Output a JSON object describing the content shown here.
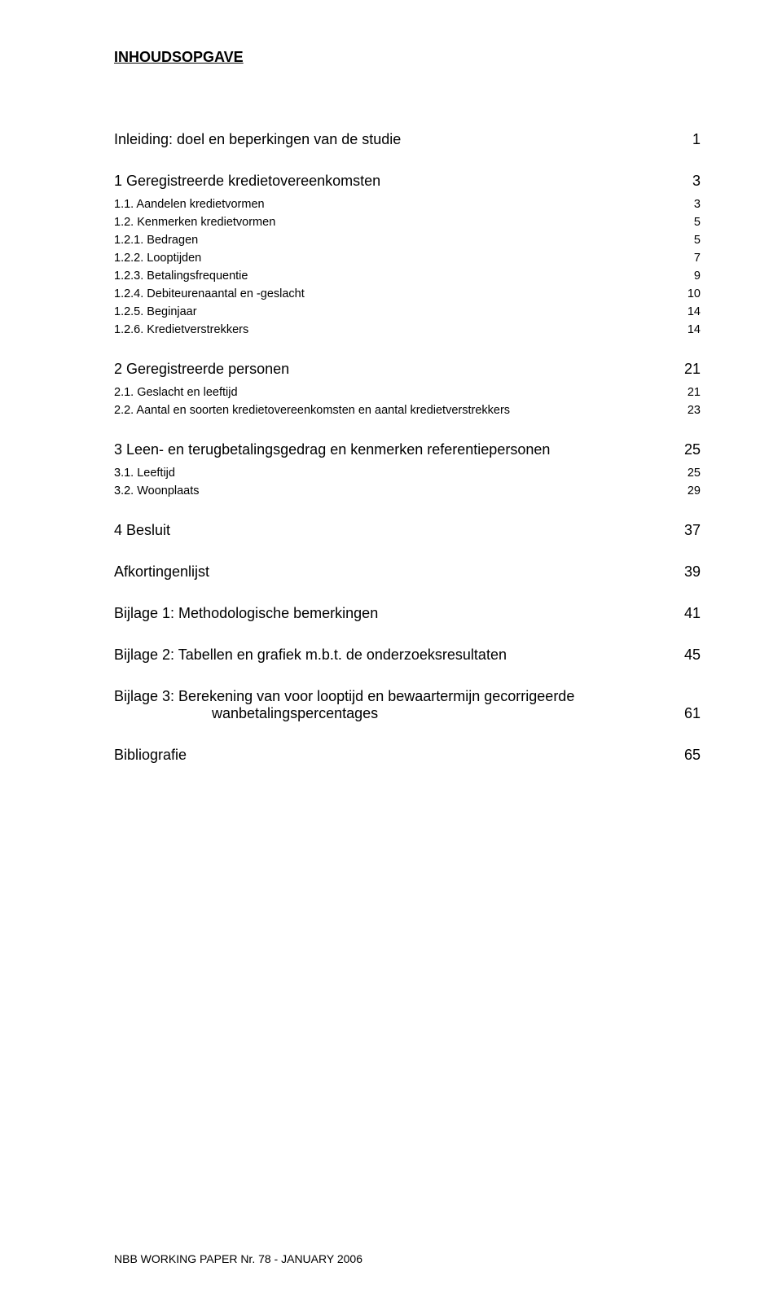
{
  "title": "INHOUDSOPGAVE",
  "entries": [
    {
      "label": "Inleiding: doel en beperkingen van de studie",
      "page": "1",
      "level": 0,
      "section": true
    },
    {
      "label": "1 Geregistreerde kredietovereenkomsten",
      "page": "3",
      "level": 0,
      "section": true
    },
    {
      "label": "1.1. Aandelen kredietvormen",
      "page": "3",
      "level": 1
    },
    {
      "label": "1.2. Kenmerken kredietvormen",
      "page": "5",
      "level": 1
    },
    {
      "label": "1.2.1. Bedragen",
      "page": "5",
      "level": 1
    },
    {
      "label": "1.2.2. Looptijden",
      "page": "7",
      "level": 1
    },
    {
      "label": "1.2.3. Betalingsfrequentie",
      "page": "9",
      "level": 1
    },
    {
      "label": "1.2.4. Debiteurenaantal en -geslacht",
      "page": "10",
      "level": 1
    },
    {
      "label": "1.2.5. Beginjaar",
      "page": "14",
      "level": 1
    },
    {
      "label": "1.2.6. Kredietverstrekkers",
      "page": "14",
      "level": 1
    },
    {
      "label": "2 Geregistreerde personen",
      "page": "21",
      "level": 0,
      "section": true
    },
    {
      "label": "2.1. Geslacht en leeftijd",
      "page": "21",
      "level": 1
    },
    {
      "label": "2.2. Aantal en soorten kredietovereenkomsten en aantal kredietverstrekkers",
      "page": "23",
      "level": 1
    },
    {
      "label": "3 Leen- en terugbetalingsgedrag en kenmerken referentiepersonen",
      "page": "25",
      "level": 0,
      "section": true
    },
    {
      "label": "3.1. Leeftijd",
      "page": "25",
      "level": 1
    },
    {
      "label": "3.2. Woonplaats",
      "page": "29",
      "level": 1
    },
    {
      "label": "4 Besluit",
      "page": "37",
      "level": 0,
      "section": true
    },
    {
      "label": "Afkortingenlijst",
      "page": "39",
      "level": 0,
      "section": true
    },
    {
      "label": "Bijlage 1: Methodologische bemerkingen",
      "page": "41",
      "level": 0,
      "section": true
    },
    {
      "label": "Bijlage 2: Tabellen en grafiek m.b.t. de onderzoeksresultaten",
      "page": "45",
      "level": 0,
      "section": true
    }
  ],
  "multiline_entry": {
    "label_line1": "Bijlage 3: Berekening van voor looptijd en bewaartermijn gecorrigeerde",
    "label_line2": "wanbetalingspercentages",
    "page": "61"
  },
  "last_entry": {
    "label": "Bibliografie",
    "page": "65"
  },
  "footer": "NBB WORKING PAPER Nr. 78 - JANUARY 2006",
  "colors": {
    "text": "#000000",
    "background": "#ffffff"
  },
  "typography": {
    "title_fontsize_pt": 14,
    "section_fontsize_pt": 14,
    "sub_fontsize_pt": 11,
    "footer_fontsize_pt": 10,
    "font_family": "Arial"
  }
}
